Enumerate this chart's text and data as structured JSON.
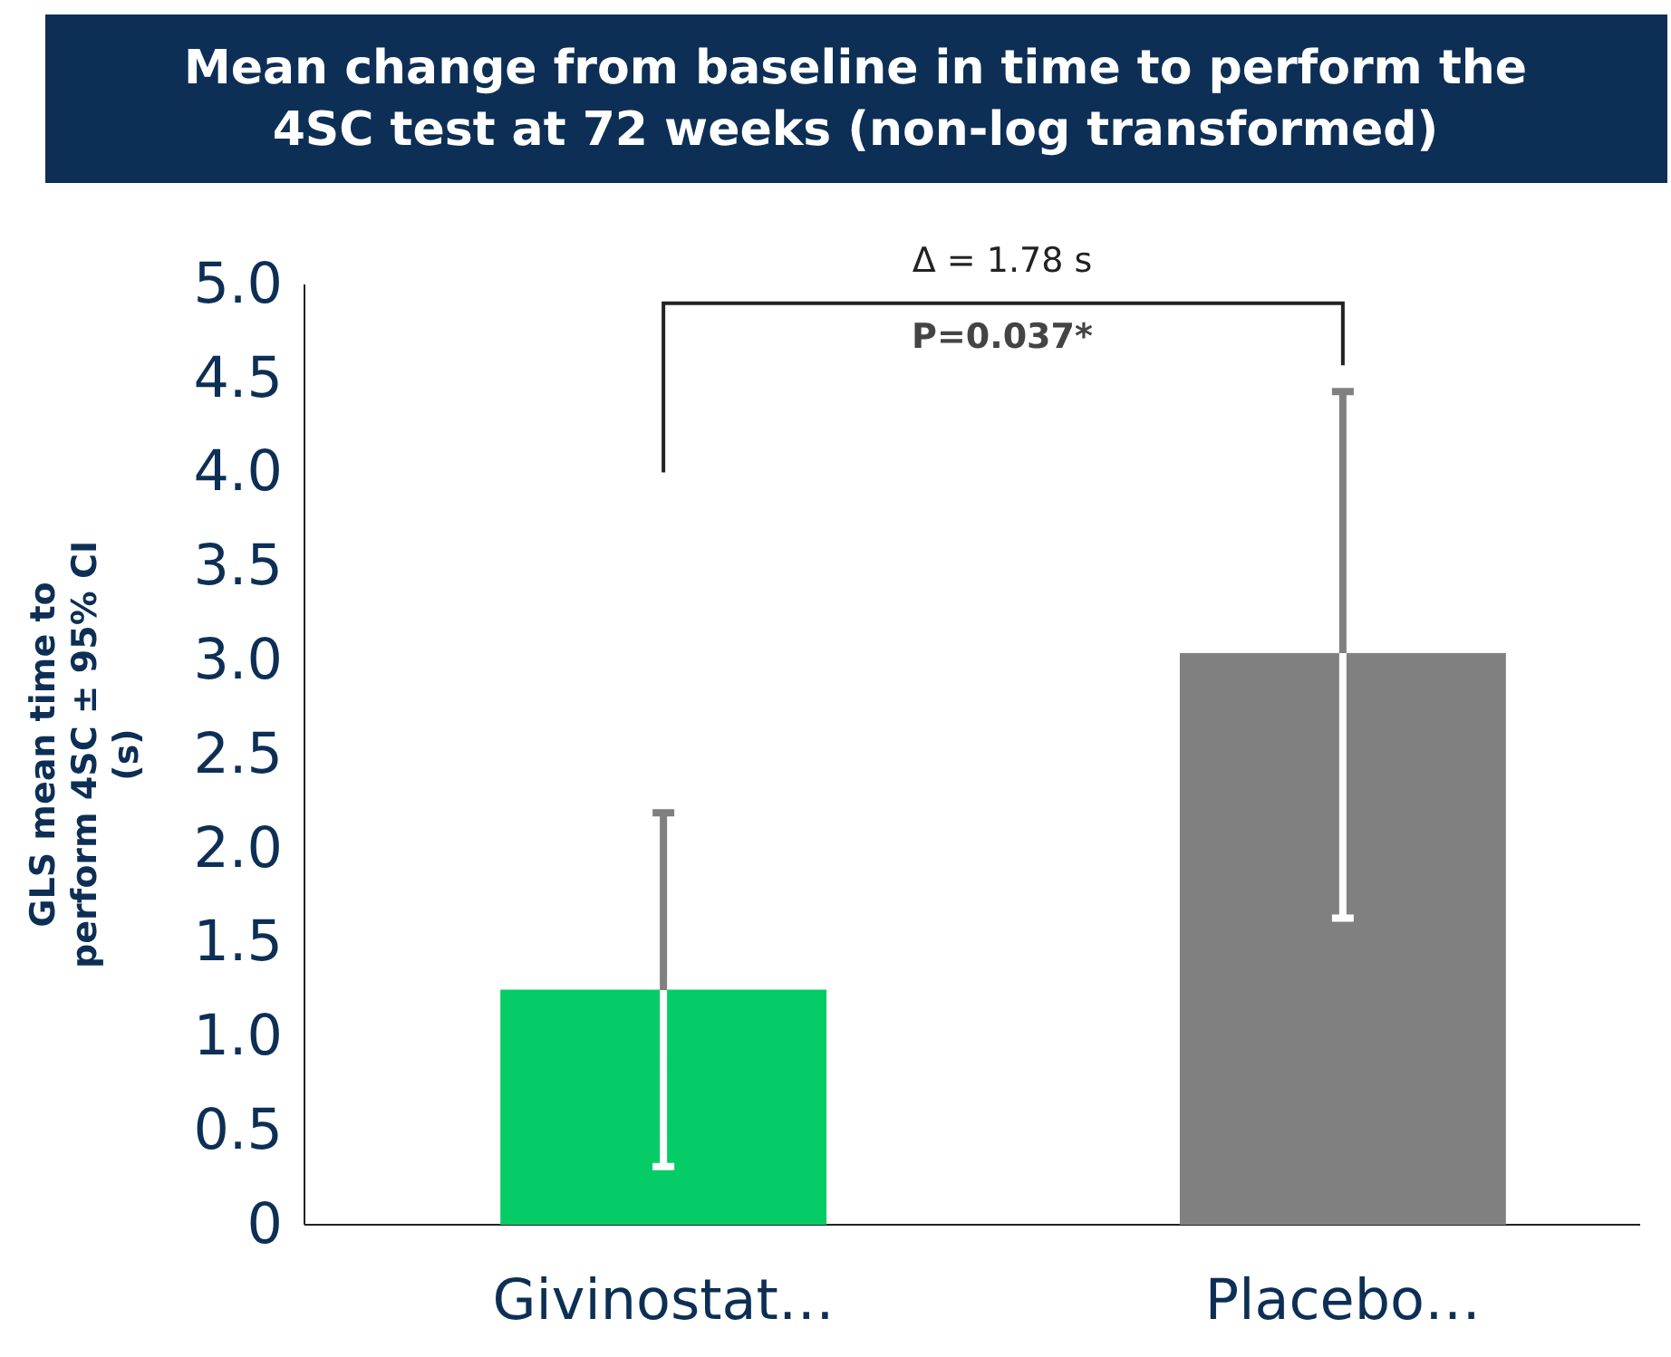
{
  "chart_data": {
    "type": "bar",
    "title": "Mean change from baseline in time to perform the 4SC test at 72 weeks (non-log transformed)",
    "ylabel": "GLS mean time to perform 4SC ± 95% CI (s)",
    "categories": [
      "Givinostat…",
      "Placebo…"
    ],
    "values": [
      1.25,
      3.04
    ],
    "colors": [
      "#05cc66",
      "#808080"
    ],
    "errors": [
      [
        0.31,
        2.19
      ],
      [
        1.63,
        4.43
      ]
    ],
    "ylim": [
      0,
      5
    ],
    "yticks": [
      0,
      {
        "value": 0.5,
        "label": "0.5"
      },
      {
        "value": 1,
        "label": "1.0"
      },
      {
        "value": 1.5,
        "label": "1.5"
      },
      {
        "value": 2,
        "label": "2.0"
      },
      {
        "value": 2.5,
        "label": "2.5"
      },
      {
        "value": 3,
        "label": "3.0"
      },
      {
        "value": 3.5,
        "label": "3.5"
      },
      {
        "value": 4,
        "label": "4.0"
      },
      {
        "value": 4.5,
        "label": "4.5"
      },
      {
        "value": 5,
        "label": "5.0"
      }
    ],
    "annotations": [
      "Δ = 1.78 s",
      "P=0.037*"
    ]
  }
}
